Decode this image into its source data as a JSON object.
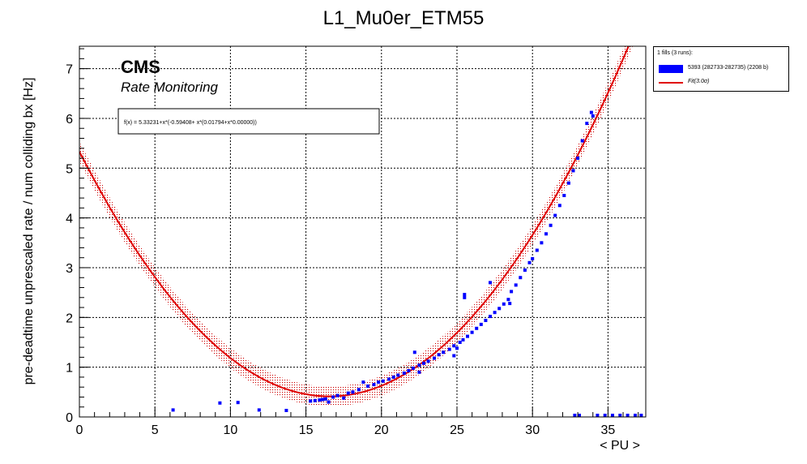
{
  "chart_data": {
    "type": "scatter",
    "title": "L1_Mu0er_ETM55",
    "xlabel": "< PU >",
    "ylabel": "pre-deadtime unprescaled rate / num colliding bx [Hz]",
    "xlim": [
      0,
      37.5
    ],
    "ylim": [
      0,
      7.45
    ],
    "x_ticks": [
      0,
      5,
      10,
      15,
      20,
      25,
      30,
      35
    ],
    "y_ticks": [
      0,
      1,
      2,
      3,
      4,
      5,
      6,
      7
    ],
    "grid": true,
    "cms_label": "CMS",
    "cms_sublabel": "Rate Monitoring",
    "fit_formula": "f(x) = 5.33231+x*(-0.59408+ x*(0.01794+x*0.00000))",
    "fit": {
      "name": "Fit(3.0σ)",
      "coefficients": [
        5.33231,
        -0.59408,
        0.01794,
        0.0
      ],
      "band_sigma": 0.2,
      "color": "#e00000",
      "band_color": "#cc0000"
    },
    "legend": {
      "position": "top-right, outside plot",
      "header": "1 fills (3 runs):",
      "entries": [
        {
          "label": "5393 (282733-282735) (2208 b)",
          "type": "fill",
          "color": "#0000ff"
        },
        {
          "label": "Fit(3.0σ)",
          "type": "line",
          "color": "#e00000"
        }
      ]
    },
    "series": [
      {
        "name": "5393 (282733-282735) (2208 b)",
        "color": "#0000ff",
        "points": [
          [
            6.2,
            0.14
          ],
          [
            9.3,
            0.28
          ],
          [
            10.5,
            0.29
          ],
          [
            11.9,
            0.14
          ],
          [
            13.7,
            0.13
          ],
          [
            15.3,
            0.32
          ],
          [
            15.6,
            0.33
          ],
          [
            15.9,
            0.34
          ],
          [
            16.1,
            0.35
          ],
          [
            16.3,
            0.36
          ],
          [
            16.5,
            0.3
          ],
          [
            16.8,
            0.4
          ],
          [
            17.1,
            0.43
          ],
          [
            17.5,
            0.38
          ],
          [
            17.8,
            0.48
          ],
          [
            18.1,
            0.5
          ],
          [
            18.5,
            0.55
          ],
          [
            18.8,
            0.7
          ],
          [
            19.1,
            0.62
          ],
          [
            19.5,
            0.65
          ],
          [
            19.8,
            0.7
          ],
          [
            20.1,
            0.72
          ],
          [
            20.5,
            0.76
          ],
          [
            20.8,
            0.8
          ],
          [
            21.1,
            0.84
          ],
          [
            21.5,
            0.88
          ],
          [
            21.8,
            0.93
          ],
          [
            22.1,
            0.98
          ],
          [
            22.2,
            1.3
          ],
          [
            22.5,
            1.04
          ],
          [
            22.5,
            0.9
          ],
          [
            22.8,
            1.08
          ],
          [
            23.1,
            1.12
          ],
          [
            23.5,
            1.18
          ],
          [
            23.8,
            1.25
          ],
          [
            24.1,
            1.3
          ],
          [
            24.5,
            1.36
          ],
          [
            24.8,
            1.43
          ],
          [
            24.8,
            1.23
          ],
          [
            25.0,
            1.38
          ],
          [
            25.2,
            1.5
          ],
          [
            25.4,
            1.55
          ],
          [
            25.5,
            2.4
          ],
          [
            25.5,
            2.46
          ],
          [
            25.7,
            1.62
          ],
          [
            26.0,
            1.7
          ],
          [
            26.3,
            1.78
          ],
          [
            26.6,
            1.86
          ],
          [
            26.9,
            1.94
          ],
          [
            27.2,
            2.02
          ],
          [
            27.2,
            2.7
          ],
          [
            27.5,
            2.1
          ],
          [
            27.8,
            2.18
          ],
          [
            28.1,
            2.27
          ],
          [
            28.4,
            2.36
          ],
          [
            28.5,
            2.28
          ],
          [
            28.6,
            2.52
          ],
          [
            28.9,
            2.65
          ],
          [
            29.2,
            2.8
          ],
          [
            29.5,
            2.95
          ],
          [
            29.8,
            3.1
          ],
          [
            30.0,
            3.18
          ],
          [
            30.3,
            3.35
          ],
          [
            30.6,
            3.5
          ],
          [
            30.9,
            3.68
          ],
          [
            31.2,
            3.85
          ],
          [
            31.5,
            4.05
          ],
          [
            31.8,
            4.25
          ],
          [
            32.1,
            4.45
          ],
          [
            32.4,
            4.7
          ],
          [
            32.7,
            4.95
          ],
          [
            33.0,
            5.2
          ],
          [
            33.3,
            5.55
          ],
          [
            33.6,
            5.9
          ],
          [
            33.9,
            6.12
          ],
          [
            34.0,
            6.05
          ],
          [
            32.8,
            0.0
          ],
          [
            33.1,
            0.0
          ],
          [
            34.3,
            0.0
          ],
          [
            34.8,
            0.0
          ],
          [
            35.3,
            0.0
          ],
          [
            35.8,
            0.0
          ],
          [
            36.3,
            0.0
          ],
          [
            36.8,
            0.0
          ],
          [
            37.2,
            0.0
          ]
        ]
      }
    ]
  }
}
